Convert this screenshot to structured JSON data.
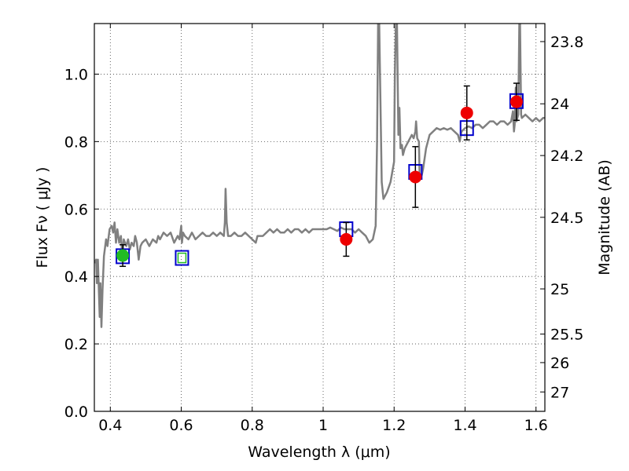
{
  "chart_data": {
    "type": "scatter",
    "title": "",
    "xlabel": "Wavelength  λ (μm)",
    "ylabel": "Flux  Fν  ( μJy )",
    "y2label": "Magnitude (AB)",
    "xlim": [
      0.355,
      1.625
    ],
    "ylim": [
      0.0,
      1.15
    ],
    "grid": true,
    "x_ticks": [
      0.4,
      0.6,
      0.8,
      1.0,
      1.2,
      1.4,
      1.6
    ],
    "x_tick_labels": [
      "0.4",
      "0.6",
      "0.8",
      "1",
      "1.2",
      "1.4",
      "1.6"
    ],
    "y_ticks": [
      0.0,
      0.2,
      0.4,
      0.6,
      0.8,
      1.0
    ],
    "y_tick_labels": [
      "0.0",
      "0.2",
      "0.4",
      "0.6",
      "0.8",
      "1.0"
    ],
    "y2_ticks": [
      {
        "label": "23.8",
        "flux": 1.0965
      },
      {
        "label": "24",
        "flux": 0.912
      },
      {
        "label": "24.2",
        "flux": 0.7586
      },
      {
        "label": "24.5",
        "flux": 0.5754
      },
      {
        "label": "25",
        "flux": 0.3631
      },
      {
        "label": "25.5",
        "flux": 0.2291
      },
      {
        "label": "26",
        "flux": 0.1445
      },
      {
        "label": "27",
        "flux": 0.0575
      }
    ],
    "colors": {
      "template": "#808080",
      "model": "#0000cc",
      "model_inner": "#22bb22",
      "observed": "#ee0000",
      "observed_optical": "#22bb22",
      "errorbar": "#000000",
      "grid": "#444444"
    },
    "series": [
      {
        "style": "line",
        "points": [
          [
            0.355,
            0.44
          ],
          [
            0.36,
            0.45
          ],
          [
            0.362,
            0.38
          ],
          [
            0.365,
            0.45
          ],
          [
            0.37,
            0.28
          ],
          [
            0.372,
            0.38
          ],
          [
            0.375,
            0.25
          ],
          [
            0.378,
            0.36
          ],
          [
            0.382,
            0.46
          ],
          [
            0.388,
            0.51
          ],
          [
            0.392,
            0.49
          ],
          [
            0.398,
            0.54
          ],
          [
            0.404,
            0.55
          ],
          [
            0.408,
            0.53
          ],
          [
            0.412,
            0.56
          ],
          [
            0.416,
            0.5
          ],
          [
            0.42,
            0.54
          ],
          [
            0.425,
            0.5
          ],
          [
            0.43,
            0.52
          ],
          [
            0.434,
            0.46
          ],
          [
            0.438,
            0.51
          ],
          [
            0.445,
            0.49
          ],
          [
            0.45,
            0.51
          ],
          [
            0.455,
            0.48
          ],
          [
            0.46,
            0.5
          ],
          [
            0.466,
            0.49
          ],
          [
            0.47,
            0.52
          ],
          [
            0.475,
            0.5
          ],
          [
            0.48,
            0.45
          ],
          [
            0.485,
            0.49
          ],
          [
            0.49,
            0.5
          ],
          [
            0.5,
            0.51
          ],
          [
            0.51,
            0.49
          ],
          [
            0.52,
            0.51
          ],
          [
            0.53,
            0.5
          ],
          [
            0.535,
            0.52
          ],
          [
            0.54,
            0.51
          ],
          [
            0.55,
            0.53
          ],
          [
            0.56,
            0.52
          ],
          [
            0.57,
            0.53
          ],
          [
            0.58,
            0.5
          ],
          [
            0.59,
            0.52
          ],
          [
            0.595,
            0.51
          ],
          [
            0.6,
            0.55
          ],
          [
            0.602,
            0.5
          ],
          [
            0.605,
            0.53
          ],
          [
            0.61,
            0.52
          ],
          [
            0.62,
            0.51
          ],
          [
            0.63,
            0.53
          ],
          [
            0.64,
            0.51
          ],
          [
            0.65,
            0.52
          ],
          [
            0.66,
            0.53
          ],
          [
            0.67,
            0.52
          ],
          [
            0.68,
            0.52
          ],
          [
            0.69,
            0.53
          ],
          [
            0.7,
            0.52
          ],
          [
            0.71,
            0.53
          ],
          [
            0.72,
            0.52
          ],
          [
            0.723,
            0.56
          ],
          [
            0.725,
            0.66
          ],
          [
            0.728,
            0.56
          ],
          [
            0.732,
            0.52
          ],
          [
            0.74,
            0.52
          ],
          [
            0.75,
            0.53
          ],
          [
            0.76,
            0.52
          ],
          [
            0.77,
            0.52
          ],
          [
            0.78,
            0.53
          ],
          [
            0.79,
            0.52
          ],
          [
            0.8,
            0.51
          ],
          [
            0.81,
            0.5
          ],
          [
            0.815,
            0.52
          ],
          [
            0.82,
            0.52
          ],
          [
            0.83,
            0.52
          ],
          [
            0.84,
            0.53
          ],
          [
            0.85,
            0.54
          ],
          [
            0.86,
            0.53
          ],
          [
            0.87,
            0.54
          ],
          [
            0.88,
            0.53
          ],
          [
            0.89,
            0.53
          ],
          [
            0.9,
            0.54
          ],
          [
            0.91,
            0.53
          ],
          [
            0.92,
            0.54
          ],
          [
            0.93,
            0.54
          ],
          [
            0.94,
            0.53
          ],
          [
            0.95,
            0.54
          ],
          [
            0.96,
            0.53
          ],
          [
            0.97,
            0.54
          ],
          [
            0.98,
            0.54
          ],
          [
            0.99,
            0.54
          ],
          [
            1.0,
            0.54
          ],
          [
            1.01,
            0.54
          ],
          [
            1.02,
            0.545
          ],
          [
            1.03,
            0.54
          ],
          [
            1.04,
            0.535
          ],
          [
            1.05,
            0.545
          ],
          [
            1.06,
            0.54
          ],
          [
            1.07,
            0.54
          ],
          [
            1.08,
            0.54
          ],
          [
            1.09,
            0.53
          ],
          [
            1.1,
            0.54
          ],
          [
            1.11,
            0.53
          ],
          [
            1.12,
            0.52
          ],
          [
            1.13,
            0.5
          ],
          [
            1.14,
            0.51
          ],
          [
            1.148,
            0.55
          ],
          [
            1.152,
            0.8
          ],
          [
            1.155,
            1.15
          ],
          [
            1.158,
            1.15
          ],
          [
            1.165,
            0.68
          ],
          [
            1.17,
            0.63
          ],
          [
            1.18,
            0.65
          ],
          [
            1.19,
            0.68
          ],
          [
            1.2,
            0.74
          ],
          [
            1.202,
            1.0
          ],
          [
            1.205,
            1.15
          ],
          [
            1.208,
            1.15
          ],
          [
            1.212,
            0.82
          ],
          [
            1.215,
            0.9
          ],
          [
            1.218,
            0.78
          ],
          [
            1.222,
            0.79
          ],
          [
            1.225,
            0.76
          ],
          [
            1.23,
            0.78
          ],
          [
            1.24,
            0.8
          ],
          [
            1.25,
            0.82
          ],
          [
            1.255,
            0.81
          ],
          [
            1.26,
            0.83
          ],
          [
            1.262,
            0.86
          ],
          [
            1.265,
            0.81
          ],
          [
            1.27,
            0.8
          ],
          [
            1.272,
            0.7
          ],
          [
            1.278,
            0.7
          ],
          [
            1.282,
            0.72
          ],
          [
            1.29,
            0.78
          ],
          [
            1.3,
            0.82
          ],
          [
            1.31,
            0.83
          ],
          [
            1.32,
            0.84
          ],
          [
            1.33,
            0.835
          ],
          [
            1.34,
            0.84
          ],
          [
            1.35,
            0.835
          ],
          [
            1.36,
            0.84
          ],
          [
            1.37,
            0.83
          ],
          [
            1.38,
            0.82
          ],
          [
            1.385,
            0.8
          ],
          [
            1.39,
            0.83
          ],
          [
            1.4,
            0.84
          ],
          [
            1.41,
            0.845
          ],
          [
            1.42,
            0.84
          ],
          [
            1.43,
            0.85
          ],
          [
            1.44,
            0.85
          ],
          [
            1.45,
            0.84
          ],
          [
            1.46,
            0.85
          ],
          [
            1.47,
            0.86
          ],
          [
            1.48,
            0.86
          ],
          [
            1.49,
            0.85
          ],
          [
            1.5,
            0.86
          ],
          [
            1.51,
            0.86
          ],
          [
            1.52,
            0.85
          ],
          [
            1.53,
            0.86
          ],
          [
            1.535,
            0.89
          ],
          [
            1.538,
            0.83
          ],
          [
            1.54,
            0.85
          ],
          [
            1.543,
            0.96
          ],
          [
            1.545,
            0.86
          ],
          [
            1.55,
            0.88
          ],
          [
            1.553,
            1.15
          ],
          [
            1.555,
            1.15
          ],
          [
            1.558,
            0.88
          ],
          [
            1.56,
            0.87
          ],
          [
            1.57,
            0.88
          ],
          [
            1.58,
            0.87
          ],
          [
            1.59,
            0.86
          ],
          [
            1.6,
            0.87
          ],
          [
            1.61,
            0.86
          ],
          [
            1.62,
            0.87
          ],
          [
            1.625,
            0.87
          ]
        ]
      },
      {
        "style": "open-square",
        "points": [
          {
            "x": 0.435,
            "y": 0.46
          },
          {
            "x": 0.602,
            "y": 0.455
          },
          {
            "x": 1.065,
            "y": 0.54
          },
          {
            "x": 1.26,
            "y": 0.71
          },
          {
            "x": 1.405,
            "y": 0.84
          },
          {
            "x": 1.545,
            "y": 0.92
          }
        ]
      },
      {
        "style": "filled-circle",
        "points": [
          {
            "x": 0.435,
            "y": 0.462,
            "err": 0.032,
            "color": "observed_optical"
          },
          {
            "x": 0.602,
            "y": 0.455,
            "err": 0.0,
            "color": "observed_optical"
          },
          {
            "x": 1.065,
            "y": 0.51,
            "err": 0.05,
            "color": "observed"
          },
          {
            "x": 1.26,
            "y": 0.695,
            "err": 0.09,
            "color": "observed"
          },
          {
            "x": 1.405,
            "y": 0.885,
            "err": 0.08,
            "color": "observed"
          },
          {
            "x": 1.545,
            "y": 0.918,
            "err": 0.055,
            "color": "observed"
          }
        ]
      }
    ]
  }
}
